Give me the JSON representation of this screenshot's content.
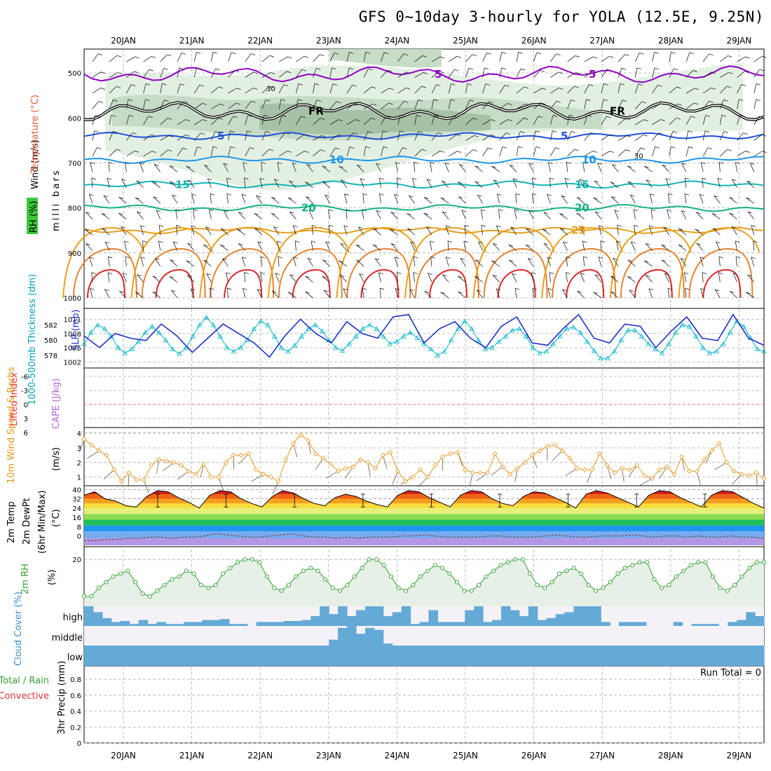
{
  "title": "GFS 0~10day 3-hourly for YOLA (12.5E, 9.25N)",
  "dates": [
    "20JAN",
    "21JAN",
    "22JAN",
    "23JAN",
    "24JAN",
    "25JAN",
    "26JAN",
    "27JAN",
    "28JAN",
    "29JAN"
  ],
  "chart_data": [
    {
      "type": "heatmap",
      "name": "upper-air cross-section",
      "labels": {
        "wind": "Wind (m/s)",
        "temp": "Temperature (°C)",
        "rh": "RH (%)",
        "axis": "milli bars"
      },
      "yticks": [
        "500",
        "600",
        "700",
        "800",
        "900",
        "1000"
      ],
      "temp_contours": [
        {
          "label": "5",
          "pressure": 503,
          "color": "#9400c8"
        },
        {
          "label": "FR",
          "pressure": 585,
          "color": "#000000"
        },
        {
          "label": "5",
          "pressure": 640,
          "color": "#1e50dc"
        },
        {
          "label": "10",
          "pressure": 693,
          "color": "#1e96e6"
        },
        {
          "label": "15",
          "pressure": 748,
          "color": "#14b4b4"
        },
        {
          "label": "20",
          "pressure": 800,
          "color": "#14b482"
        },
        {
          "label": "25",
          "pressure": 850,
          "color": "#e6a01e"
        }
      ],
      "rh_label": "30"
    },
    {
      "type": "line",
      "name": "thickness and SLP",
      "labels": {
        "thick": "1000-500mb Thickness (dm)",
        "slp": "SLP (mb)"
      },
      "thick_ticks": [
        "582",
        "580",
        "578"
      ],
      "slp_ticks": [
        "1011",
        "1008",
        "1005",
        "1002"
      ],
      "series": [
        {
          "name": "thickness",
          "color": "#00b4c8",
          "values": [
            579.5,
            581.0,
            582.0,
            581.5,
            580.5,
            579.0,
            578.3,
            578.8,
            579.8,
            581.0,
            581.8,
            581.0,
            580.0,
            578.8,
            578.2,
            579.0,
            580.5,
            582.0,
            583.0,
            582.0,
            580.5,
            579.0,
            578.5,
            579.0,
            580.0,
            581.5,
            582.5,
            582.0,
            580.5,
            579.0,
            578.5,
            579.3,
            580.5,
            581.5,
            582.0,
            581.2,
            580.0,
            579.0,
            578.6,
            579.5,
            580.5,
            581.5,
            582.0,
            581.5,
            580.5,
            579.5,
            579.8,
            580.5,
            581.0,
            580.3,
            579.5,
            578.8,
            578.0,
            578.5,
            580.0,
            581.5,
            582.5,
            581.5,
            580.0,
            578.8,
            579.0,
            579.8,
            580.5,
            581.3,
            581.5,
            580.5,
            579.0,
            578.3,
            578.5,
            579.5,
            580.5,
            581.5,
            581.7,
            581.0,
            579.8,
            578.6,
            577.6,
            577.6,
            578.5,
            580.0,
            581.3,
            581.3,
            580.5,
            579.5,
            578.8,
            578.3,
            579.5,
            581.0,
            582.0,
            581.8,
            580.5,
            579.0,
            578.3,
            578.5,
            579.5,
            581.0,
            582.5,
            581.8,
            580.3,
            578.8,
            578.5
          ]
        },
        {
          "name": "SLP",
          "color": "#1e32c8",
          "values": [
            1007.5,
            1005.0,
            1008.0,
            1007.0,
            1006.5,
            1010.0,
            1007.5,
            1004.0,
            1007.0,
            1010.0,
            1008.0,
            1006.0,
            1003.0,
            1007.5,
            1011.0,
            1008.0,
            1006.0,
            1010.5,
            1008.0,
            1007.0,
            1011.5,
            1012.0,
            1006.0,
            1009.0,
            1010.5,
            1007.0,
            1005.0,
            1009.5,
            1011.5,
            1006.0,
            1005.5,
            1009.0,
            1012.0,
            1007.0,
            1006.0,
            1010.0,
            1009.5,
            1005.0,
            1008.5,
            1011.5,
            1007.0,
            1006.5,
            1012.0,
            1007.0,
            1005.5
          ]
        }
      ]
    },
    {
      "type": "line",
      "name": "Lifted Index and CAPE",
      "labels": {
        "li": "Lifted Index",
        "cape": "CAPE (J/kg)"
      },
      "yticks": [
        "-6",
        "-3",
        "0",
        "3",
        "6"
      ],
      "values": []
    },
    {
      "type": "line",
      "name": "10m wind speed and barbs",
      "labels": {
        "title": "10m Wind Speed & Barbs",
        "unit": "(m/s)"
      },
      "yticks": [
        "4",
        "3",
        "2",
        "1"
      ],
      "series": [
        {
          "name": "speed",
          "color": "#e6961e",
          "values": [
            3.6,
            3.2,
            2.8,
            2.5,
            1.5,
            0.7,
            1.3,
            0.8,
            0.8,
            1.8,
            2.2,
            2.1,
            2.0,
            1.8,
            1.4,
            1.2,
            1.9,
            1.0,
            1.0,
            2.0,
            2.5,
            2.5,
            2.6,
            1.5,
            1.2,
            1.0,
            0.7,
            2.2,
            3.3,
            3.9,
            3.5,
            2.6,
            2.3,
            1.9,
            1.4,
            1.6,
            1.7,
            2.2,
            2.0,
            1.6,
            2.5,
            2.7,
            1.4,
            0.7,
            1.0,
            1.5,
            1.0,
            1.8,
            2.4,
            2.6,
            2.7,
            1.5,
            1.3,
            1.3,
            1.3,
            2.6,
            1.7,
            1.2,
            1.6,
            2.0,
            2.5,
            2.8,
            3.1,
            3.2,
            2.8,
            2.3,
            1.6,
            1.5,
            1.5,
            2.6,
            1.8,
            1.3,
            1.6,
            1.5,
            1.8,
            1.1,
            0.9,
            1.5,
            1.7,
            1.2,
            2.4,
            1.4,
            1.4,
            2.2,
            2.8,
            3.3,
            2.0,
            1.4,
            1.2,
            1.1,
            1.3,
            0.9
          ]
        }
      ]
    },
    {
      "type": "area",
      "name": "2m temperature",
      "labels": {
        "temp": "2m Temp",
        "dew": "2m DewPt",
        "minmax": "(6hr Min/Max)",
        "unit": "(°C)"
      },
      "yticks": [
        "40",
        "32",
        "24",
        "16",
        "8",
        "0"
      ],
      "series": [
        {
          "name": "Tmax",
          "values": [
            35,
            38,
            32,
            30,
            26,
            25,
            34,
            39,
            38,
            33,
            29,
            24,
            35,
            39,
            38,
            32,
            28,
            25,
            34,
            39,
            37,
            32,
            28,
            26,
            33,
            36,
            34,
            30,
            27,
            25,
            35,
            39,
            38,
            33,
            29,
            25,
            35,
            39,
            38,
            32,
            28,
            26,
            34,
            38,
            37,
            33,
            29,
            24,
            36,
            39,
            37,
            33,
            29,
            25,
            35,
            39,
            38,
            33,
            29,
            25,
            35,
            39,
            38,
            33,
            28,
            24
          ]
        },
        {
          "name": "dewpoint",
          "values": [
            -4,
            -4,
            -3,
            -3,
            -2,
            -2,
            -1,
            -1,
            -2,
            -1,
            -1,
            0,
            2,
            1,
            0,
            -1,
            -1,
            0,
            1,
            2,
            0,
            -1,
            -1,
            -2,
            -1,
            -2,
            -1,
            -1,
            -1,
            0,
            0,
            1,
            0,
            -1,
            -1,
            -1,
            -1,
            0,
            0,
            -1,
            -1,
            -1,
            0,
            1,
            0,
            -1,
            -1,
            0,
            0,
            0,
            1,
            0,
            -1,
            0,
            0,
            -1,
            0,
            -1,
            -1,
            0,
            -1,
            -1,
            -2
          ]
        }
      ]
    },
    {
      "type": "area",
      "name": "2m relative humidity",
      "labels": {
        "title": "2m RH",
        "unit": "(%)"
      },
      "yticks": [
        "20"
      ],
      "series": [
        {
          "name": "RH",
          "color": "#32a032",
          "values": [
            7,
            7,
            10,
            12,
            14,
            15,
            16,
            12,
            8,
            7,
            9,
            11,
            13,
            14,
            16,
            15,
            11,
            10,
            11,
            15,
            17,
            19,
            20,
            20,
            19,
            14,
            10,
            9,
            11,
            14,
            16,
            17,
            16,
            13,
            10,
            9,
            11,
            14,
            17,
            20,
            20,
            18,
            14,
            10,
            9,
            11,
            14,
            16,
            18,
            17,
            15,
            12,
            9,
            9,
            11,
            14,
            16,
            18,
            19,
            20,
            20,
            15,
            11,
            10,
            12,
            15,
            16,
            17,
            15,
            11,
            9,
            10,
            12,
            15,
            17,
            18,
            19,
            19,
            13,
            10,
            11,
            14,
            16,
            18,
            19,
            19,
            14,
            10,
            9,
            11,
            14,
            17,
            19,
            19
          ]
        }
      ]
    },
    {
      "type": "bar",
      "name": "cloud cover",
      "labels": {
        "title": "Cloud Cover (%)",
        "high": "high",
        "middle": "middle",
        "low": "low"
      },
      "series": [
        {
          "name": "high",
          "values": [
            100,
            70,
            40,
            20,
            25,
            10,
            30,
            10,
            20,
            10,
            10,
            20,
            20,
            30,
            30,
            35,
            10,
            10,
            0,
            20,
            20,
            20,
            25,
            25,
            30,
            50,
            100,
            60,
            100,
            50,
            80,
            100,
            100,
            50,
            70,
            100,
            10,
            20,
            80,
            20,
            20,
            20,
            80,
            100,
            20,
            30,
            100,
            80,
            50,
            100,
            30,
            40,
            60,
            70,
            100,
            100,
            100,
            20,
            0,
            20,
            20,
            20,
            0,
            0,
            0,
            20,
            0,
            10,
            10,
            10,
            0,
            20,
            30,
            70,
            50
          ]
        },
        {
          "name": "middle",
          "values": [
            0,
            0,
            0,
            0,
            0,
            0,
            0,
            0,
            0,
            0,
            0,
            0,
            0,
            0,
            0,
            0,
            0,
            0,
            0,
            0,
            0,
            0,
            0,
            0,
            0,
            0,
            0,
            30,
            90,
            100,
            60,
            90,
            80,
            10,
            0,
            0,
            0,
            0,
            0,
            0,
            0,
            0,
            0,
            0,
            0,
            0,
            0,
            0,
            0,
            0,
            0,
            0,
            0,
            0,
            0,
            0,
            0,
            0,
            0,
            0,
            0,
            0,
            0,
            0,
            0,
            0,
            0,
            0,
            0,
            0,
            0,
            0,
            0,
            0,
            0
          ]
        },
        {
          "name": "low",
          "values": [
            100,
            100,
            100,
            100,
            100,
            100,
            100,
            100,
            100,
            100,
            100,
            100,
            100,
            100,
            100,
            100,
            100,
            100,
            100,
            100,
            100,
            100,
            100,
            100,
            100,
            100,
            100,
            100,
            100,
            100,
            100,
            100,
            100,
            100,
            100,
            100,
            100,
            100,
            100,
            100,
            100,
            100,
            100,
            100,
            100,
            100,
            100,
            100,
            100,
            100,
            100,
            100,
            100,
            100,
            100,
            100,
            100,
            100,
            100,
            100,
            100,
            100,
            100,
            100,
            100,
            100,
            100,
            100,
            100,
            100,
            100,
            100,
            100,
            100,
            100
          ]
        }
      ]
    },
    {
      "type": "bar",
      "name": "3hr precipitation",
      "labels": {
        "title": "3hr Precip (mm)",
        "total": "Total / Rain",
        "conv": "Convective",
        "run_total": "Run Total = 0"
      },
      "yticks": [
        "0.8",
        "0.6",
        "0.4",
        "0.2",
        "0"
      ],
      "values": []
    }
  ]
}
